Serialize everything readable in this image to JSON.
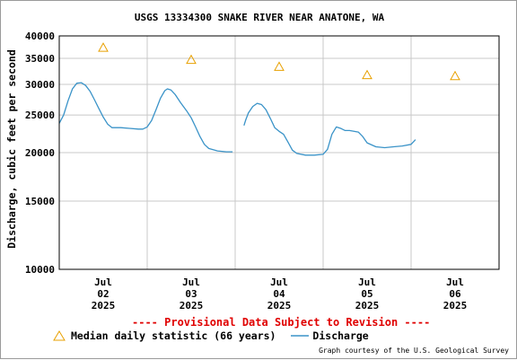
{
  "colors": {
    "discharge": "#3a93c8",
    "median": "#e8a000",
    "grid": "#c8c8c8",
    "provisional": "#e00000"
  },
  "footer": {
    "provisional_note": "---- Provisional Data Subject to Revision ----",
    "credit": "Graph courtesy of the U.S. Geological Survey"
  },
  "chart_data": {
    "type": "line",
    "title": "USGS 13334300 SNAKE RIVER NEAR ANATONE, WA",
    "ylabel": "Discharge, cubic feet per second",
    "xlabel": "",
    "y_scale": "log",
    "ylim": [
      10000,
      40000
    ],
    "xlim": [
      1.5,
      6.5
    ],
    "yticks": [
      10000,
      15000,
      20000,
      25000,
      30000,
      35000,
      40000
    ],
    "xticks": [
      {
        "x": 2,
        "month": "Jul",
        "day": "02",
        "year": "2025"
      },
      {
        "x": 3,
        "month": "Jul",
        "day": "03",
        "year": "2025"
      },
      {
        "x": 4,
        "month": "Jul",
        "day": "04",
        "year": "2025"
      },
      {
        "x": 5,
        "month": "Jul",
        "day": "05",
        "year": "2025"
      },
      {
        "x": 6,
        "month": "Jul",
        "day": "06",
        "year": "2025"
      }
    ],
    "grid": true,
    "legend": [
      {
        "label": "Median daily statistic (66 years)",
        "marker": "triangle"
      },
      {
        "label": "Discharge",
        "marker": "line"
      }
    ],
    "series": [
      {
        "name": "Discharge",
        "segments": [
          [
            [
              1.5,
              23800
            ],
            [
              1.55,
              25000
            ],
            [
              1.6,
              27200
            ],
            [
              1.65,
              29200
            ],
            [
              1.7,
              30200
            ],
            [
              1.75,
              30300
            ],
            [
              1.8,
              29800
            ],
            [
              1.85,
              28800
            ],
            [
              1.9,
              27400
            ],
            [
              1.95,
              26000
            ],
            [
              2.0,
              24700
            ],
            [
              2.05,
              23700
            ],
            [
              2.1,
              23200
            ],
            [
              2.2,
              23200
            ],
            [
              2.3,
              23100
            ],
            [
              2.4,
              23000
            ],
            [
              2.45,
              23000
            ],
            [
              2.5,
              23300
            ],
            [
              2.55,
              24200
            ],
            [
              2.6,
              25800
            ],
            [
              2.65,
              27600
            ],
            [
              2.7,
              28900
            ],
            [
              2.73,
              29200
            ],
            [
              2.77,
              29000
            ],
            [
              2.82,
              28200
            ],
            [
              2.88,
              26900
            ],
            [
              2.95,
              25600
            ],
            [
              3.0,
              24600
            ],
            [
              3.05,
              23300
            ],
            [
              3.1,
              22000
            ],
            [
              3.15,
              21000
            ],
            [
              3.2,
              20500
            ],
            [
              3.3,
              20200
            ],
            [
              3.4,
              20100
            ],
            [
              3.47,
              20100
            ]
          ],
          [
            [
              3.6,
              23500
            ],
            [
              3.62,
              24300
            ],
            [
              3.65,
              25300
            ],
            [
              3.7,
              26300
            ],
            [
              3.75,
              26800
            ],
            [
              3.8,
              26600
            ],
            [
              3.85,
              25800
            ],
            [
              3.9,
              24500
            ],
            [
              3.95,
              23200
            ],
            [
              4.0,
              22700
            ],
            [
              4.05,
              22300
            ],
            [
              4.1,
              21300
            ],
            [
              4.15,
              20300
            ],
            [
              4.2,
              19900
            ],
            [
              4.3,
              19700
            ],
            [
              4.4,
              19700
            ],
            [
              4.5,
              19800
            ],
            [
              4.55,
              20400
            ],
            [
              4.6,
              22300
            ],
            [
              4.65,
              23300
            ],
            [
              4.7,
              23100
            ],
            [
              4.75,
              22800
            ],
            [
              4.8,
              22800
            ],
            [
              4.9,
              22600
            ],
            [
              4.95,
              22000
            ],
            [
              5.0,
              21200
            ],
            [
              5.1,
              20700
            ],
            [
              5.2,
              20600
            ],
            [
              5.3,
              20700
            ],
            [
              5.4,
              20800
            ],
            [
              5.5,
              21000
            ],
            [
              5.55,
              21600
            ]
          ]
        ]
      },
      {
        "name": "Median daily statistic (66 years)",
        "points": [
          [
            2,
            37300
          ],
          [
            3,
            34700
          ],
          [
            4,
            33300
          ],
          [
            5,
            31700
          ],
          [
            6,
            31500
          ]
        ]
      }
    ]
  }
}
